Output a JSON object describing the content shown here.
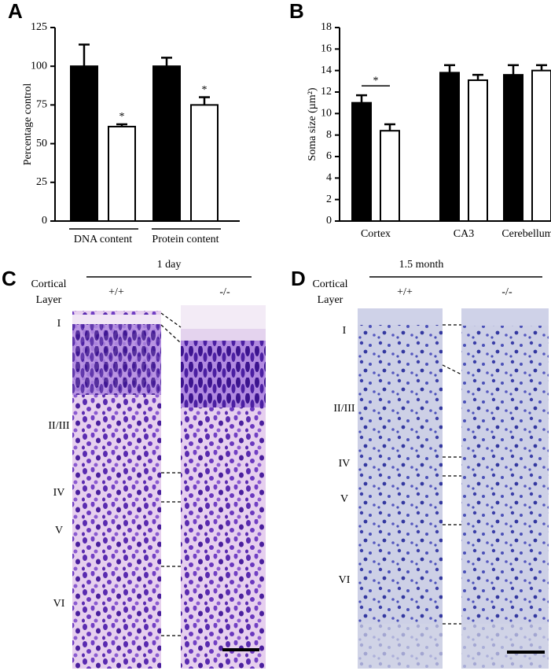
{
  "chart_data": [
    {
      "type": "bar",
      "panel_label": "A",
      "y_label": "Percentage control",
      "categories": [
        "DNA content",
        "Protein content"
      ],
      "series": [
        {
          "color": "#000000",
          "values": [
            100,
            100
          ],
          "errors": [
            14,
            5.5
          ]
        },
        {
          "color": "#ffffff",
          "values": [
            61,
            75
          ],
          "errors": [
            1.5,
            5
          ]
        }
      ],
      "annotations": [
        "*",
        "*"
      ],
      "significance_bracket": false,
      "ylim": [
        0,
        125
      ],
      "yticks": [
        0,
        25,
        50,
        75,
        100,
        125
      ],
      "grid": false
    },
    {
      "type": "bar",
      "panel_label": "B",
      "y_label": "Soma size (µm²)",
      "categories": [
        "Cortex",
        "CA3",
        "Cerebellum"
      ],
      "series": [
        {
          "color": "#000000",
          "values": [
            11,
            13.8,
            13.6
          ],
          "errors": [
            0.7,
            0.7,
            0.9
          ]
        },
        {
          "color": "#ffffff",
          "values": [
            8.4,
            13.1,
            14
          ],
          "errors": [
            0.6,
            0.5,
            0.5
          ]
        }
      ],
      "annotations": [
        "*"
      ],
      "significance_bracket": true,
      "ylim": [
        0,
        18
      ],
      "yticks": [
        0,
        2,
        4,
        6,
        8,
        10,
        12,
        14,
        16,
        18
      ],
      "grid": false
    }
  ],
  "panel_c": {
    "panel_label": "C",
    "time": "1 day",
    "row_header": [
      "Cortical",
      "Layer"
    ],
    "genotypes": [
      "+/+",
      "-/-"
    ],
    "layers": [
      "I",
      "II/III",
      "IV",
      "V",
      "VI"
    ]
  },
  "panel_d": {
    "panel_label": "D",
    "time": "1.5 month",
    "row_header": [
      "Cortical",
      "Layer"
    ],
    "genotypes": [
      "+/+",
      "-/-"
    ],
    "layers": [
      "I",
      "II/III",
      "IV",
      "V",
      "VI"
    ]
  }
}
